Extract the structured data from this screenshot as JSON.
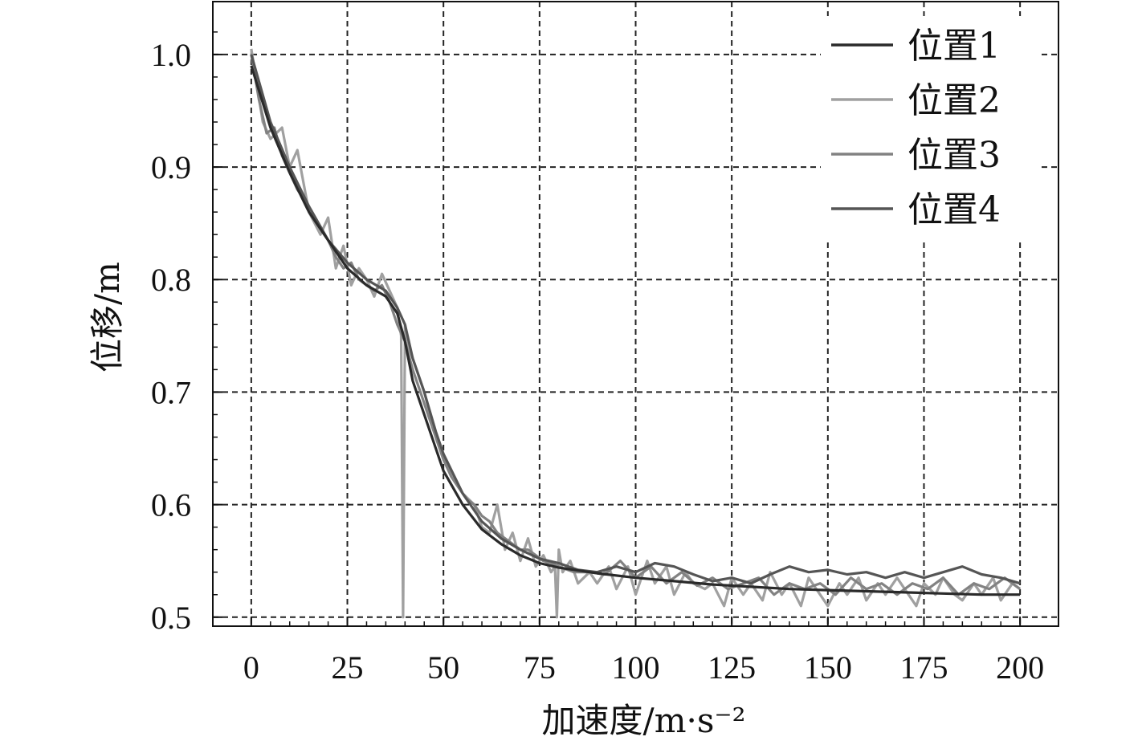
{
  "chart_data": {
    "type": "line",
    "xlabel": "加速度/m·s⁻²",
    "ylabel": "位移/m",
    "xlim": [
      -10,
      210
    ],
    "ylim": [
      0.492,
      1.047
    ],
    "xticks": [
      0,
      25,
      50,
      75,
      100,
      125,
      150,
      175,
      200
    ],
    "yticks": [
      0.5,
      0.6,
      0.7,
      0.8,
      0.9,
      1.0
    ],
    "xtick_labels": [
      "0",
      "25",
      "50",
      "75",
      "100",
      "125",
      "150",
      "175",
      "200"
    ],
    "ytick_labels": [
      "0.5",
      "0.6",
      "0.7",
      "0.8",
      "0.9",
      "1.0"
    ],
    "grid": true,
    "grid_style": "dashed",
    "legend_position": "top-right",
    "series": [
      {
        "name": "位置1",
        "color": "#2a2a2a",
        "x": [
          0,
          5,
          10,
          15,
          20,
          25,
          30,
          35,
          38,
          40,
          42,
          45,
          50,
          55,
          60,
          65,
          70,
          75,
          80,
          90,
          100,
          110,
          120,
          130,
          140,
          150,
          160,
          170,
          180,
          190,
          200
        ],
        "y": [
          0.99,
          0.935,
          0.895,
          0.86,
          0.835,
          0.81,
          0.795,
          0.785,
          0.77,
          0.745,
          0.71,
          0.68,
          0.63,
          0.6,
          0.578,
          0.565,
          0.555,
          0.548,
          0.544,
          0.539,
          0.535,
          0.532,
          0.529,
          0.527,
          0.525,
          0.524,
          0.523,
          0.522,
          0.521,
          0.52,
          0.52
        ]
      },
      {
        "name": "位置2",
        "color": "#a0a0a0",
        "x": [
          0,
          3,
          5,
          8,
          10,
          12,
          15,
          18,
          20,
          22,
          24,
          26,
          28,
          30,
          32,
          34,
          36,
          38,
          39,
          39.5,
          40,
          41,
          43,
          45,
          48,
          50,
          53,
          55,
          58,
          60,
          62,
          64,
          66,
          68,
          70,
          72,
          74,
          76,
          78,
          79,
          79.5,
          80,
          81,
          83,
          85,
          88,
          90,
          93,
          95,
          98,
          100,
          103,
          105,
          108,
          110,
          113,
          115,
          118,
          120,
          123,
          125,
          128,
          130,
          133,
          135,
          138,
          140,
          143,
          145,
          148,
          150,
          153,
          155,
          158,
          160,
          163,
          165,
          168,
          170,
          173,
          175,
          178,
          180,
          183,
          185,
          188,
          190,
          193,
          195,
          198,
          200
        ],
        "y": [
          1.005,
          0.94,
          0.925,
          0.935,
          0.9,
          0.915,
          0.86,
          0.84,
          0.855,
          0.81,
          0.83,
          0.795,
          0.81,
          0.8,
          0.785,
          0.805,
          0.79,
          0.775,
          0.75,
          0.5,
          0.76,
          0.74,
          0.72,
          0.7,
          0.66,
          0.64,
          0.62,
          0.61,
          0.6,
          0.58,
          0.575,
          0.6,
          0.56,
          0.575,
          0.55,
          0.57,
          0.545,
          0.555,
          0.54,
          0.545,
          0.5,
          0.56,
          0.54,
          0.55,
          0.53,
          0.54,
          0.53,
          0.545,
          0.525,
          0.545,
          0.52,
          0.55,
          0.53,
          0.545,
          0.52,
          0.54,
          0.53,
          0.525,
          0.53,
          0.51,
          0.535,
          0.52,
          0.53,
          0.515,
          0.54,
          0.52,
          0.53,
          0.51,
          0.535,
          0.52,
          0.51,
          0.53,
          0.52,
          0.535,
          0.515,
          0.53,
          0.52,
          0.535,
          0.525,
          0.51,
          0.53,
          0.52,
          0.535,
          0.52,
          0.515,
          0.53,
          0.52,
          0.535,
          0.515,
          0.53,
          0.525
        ]
      },
      {
        "name": "位置3",
        "color": "#828282",
        "x": [
          0,
          2,
          4,
          6,
          8,
          10,
          12,
          14,
          16,
          18,
          20,
          22,
          24,
          26,
          28,
          30,
          32,
          34,
          36,
          38,
          40,
          42,
          44,
          46,
          48,
          50,
          52,
          54,
          56,
          58,
          60,
          62,
          64,
          66,
          68,
          70,
          72,
          74,
          76,
          78,
          80,
          84,
          88,
          92,
          96,
          100,
          104,
          108,
          112,
          116,
          120,
          124,
          128,
          132,
          136,
          140,
          144,
          148,
          152,
          156,
          160,
          164,
          168,
          172,
          176,
          180,
          184,
          188,
          192,
          196,
          200
        ],
        "y": [
          1.0,
          0.96,
          0.93,
          0.935,
          0.91,
          0.895,
          0.88,
          0.87,
          0.855,
          0.845,
          0.835,
          0.82,
          0.81,
          0.815,
          0.8,
          0.795,
          0.79,
          0.795,
          0.78,
          0.76,
          0.745,
          0.72,
          0.7,
          0.68,
          0.66,
          0.64,
          0.625,
          0.615,
          0.605,
          0.6,
          0.59,
          0.585,
          0.575,
          0.57,
          0.565,
          0.56,
          0.56,
          0.555,
          0.55,
          0.548,
          0.545,
          0.54,
          0.54,
          0.538,
          0.55,
          0.535,
          0.545,
          0.53,
          0.54,
          0.528,
          0.535,
          0.525,
          0.53,
          0.535,
          0.52,
          0.53,
          0.525,
          0.53,
          0.52,
          0.535,
          0.525,
          0.53,
          0.52,
          0.53,
          0.525,
          0.535,
          0.52,
          0.53,
          0.525,
          0.535,
          0.525
        ]
      },
      {
        "name": "位置4",
        "color": "#555555",
        "x": [
          0,
          5,
          10,
          15,
          20,
          25,
          30,
          35,
          38,
          40,
          42,
          45,
          48,
          50,
          55,
          60,
          65,
          70,
          75,
          80,
          85,
          90,
          95,
          100,
          105,
          110,
          115,
          120,
          125,
          130,
          135,
          140,
          145,
          150,
          155,
          160,
          165,
          170,
          175,
          180,
          185,
          190,
          195,
          200
        ],
        "y": [
          1.0,
          0.94,
          0.9,
          0.865,
          0.835,
          0.815,
          0.8,
          0.79,
          0.775,
          0.76,
          0.73,
          0.7,
          0.665,
          0.645,
          0.61,
          0.585,
          0.57,
          0.56,
          0.552,
          0.548,
          0.542,
          0.54,
          0.545,
          0.54,
          0.548,
          0.545,
          0.538,
          0.532,
          0.535,
          0.53,
          0.538,
          0.545,
          0.54,
          0.542,
          0.538,
          0.54,
          0.535,
          0.54,
          0.535,
          0.54,
          0.545,
          0.538,
          0.535,
          0.53
        ]
      }
    ]
  }
}
